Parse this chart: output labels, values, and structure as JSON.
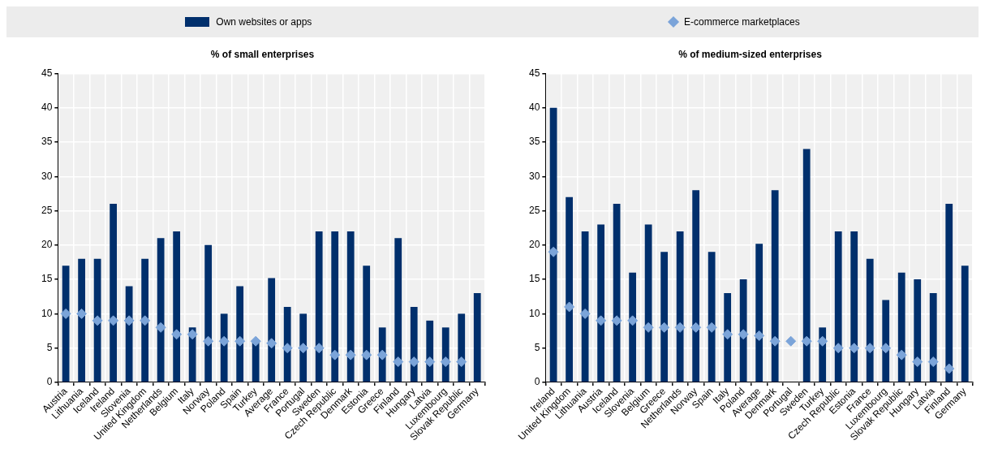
{
  "chart_data": [
    {
      "type": "bar",
      "title": "% of small enterprises",
      "legend": "top",
      "grid": true,
      "marker": "diamond",
      "ylim": [
        0,
        45
      ],
      "yticks": [
        0,
        5,
        10,
        15,
        20,
        25,
        30,
        35,
        40,
        45
      ],
      "categories": [
        "Austria",
        "Lithuania",
        "Iceland",
        "Ireland",
        "Slovenia",
        "United Kingdom",
        "Netherlands",
        "Belgium",
        "Italy",
        "Norway",
        "Poland",
        "Spain",
        "Turkey",
        "Average",
        "France",
        "Portugal",
        "Sweden",
        "Czech Republic",
        "Denmark",
        "Estonia",
        "Greece",
        "Finland",
        "Hungary",
        "Latvia",
        "Luxembourg",
        "Slovak Republic",
        "Germany"
      ],
      "series": [
        {
          "name": "Own websites or apps",
          "color": "#002f6c",
          "values": [
            17,
            18,
            18,
            26,
            14,
            18,
            21,
            22,
            8,
            20,
            10,
            14,
            6,
            15.2,
            11,
            10,
            22,
            22,
            22,
            17,
            8,
            21,
            11,
            9,
            8,
            10,
            13
          ]
        },
        {
          "name": "E-commerce marketplaces",
          "type": "scatter",
          "color": "#7ba4d9",
          "values": [
            10,
            10,
            9,
            9,
            9,
            9,
            8,
            7,
            7,
            6,
            6,
            6,
            6,
            5.7,
            5,
            5,
            5,
            4,
            4,
            4,
            4,
            3,
            3,
            3,
            3,
            3,
            null
          ]
        }
      ]
    },
    {
      "type": "bar",
      "title": "% of medium-sized enterprises",
      "grid": true,
      "marker": "diamond",
      "ylim": [
        0,
        45
      ],
      "yticks": [
        0,
        5,
        10,
        15,
        20,
        25,
        30,
        35,
        40,
        45
      ],
      "categories": [
        "Ireland",
        "United Kingdom",
        "Lithuania",
        "Austria",
        "Iceland",
        "Slovenia",
        "Belgium",
        "Greece",
        "Netherlands",
        "Norway",
        "Spain",
        "Italy",
        "Poland",
        "Average",
        "Denmark",
        "Portugal",
        "Sweden",
        "Turkey",
        "Czech Republic",
        "Estonia",
        "France",
        "Luxembourg",
        "Slovak Republic",
        "Hungary",
        "Latvia",
        "Finland",
        "Germany"
      ],
      "series": [
        {
          "color": "#002f6c",
          "values": [
            40,
            27,
            22,
            23,
            26,
            16,
            23,
            19,
            22,
            28,
            19,
            13,
            15,
            20.2,
            28,
            null,
            34,
            8,
            22,
            22,
            18,
            12,
            16,
            15,
            13,
            26,
            17
          ]
        },
        {
          "type": "scatter",
          "color": "#7ba4d9",
          "values": [
            19,
            11,
            10,
            9,
            9,
            9,
            8,
            8,
            8,
            8,
            8,
            7,
            7,
            6.8,
            6,
            6,
            6,
            6,
            5,
            5,
            5,
            5,
            4,
            3,
            3,
            2,
            null
          ]
        }
      ]
    }
  ]
}
